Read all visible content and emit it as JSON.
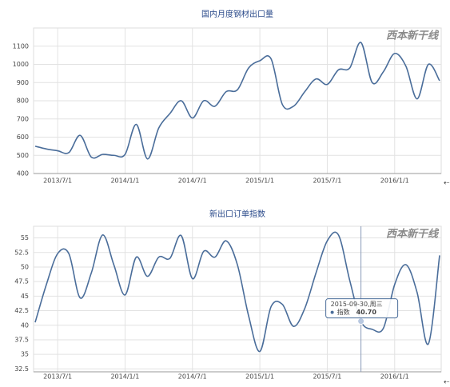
{
  "chart_data": [
    {
      "type": "line",
      "title": "国内月度钢材出口量",
      "watermark": "西本新干线",
      "categories": [
        null,
        null,
        "2013/7/1",
        null,
        null,
        null,
        null,
        null,
        "2014/1/1",
        null,
        null,
        null,
        null,
        null,
        "2014/7/1",
        null,
        null,
        null,
        null,
        null,
        "2015/1/1",
        null,
        null,
        null,
        null,
        null,
        "2015/7/1",
        null,
        null,
        null,
        null,
        null,
        "2016/1/1",
        null,
        null,
        null,
        null
      ],
      "series": [
        {
          "color": "#4a6d9a",
          "values": [
            550,
            535,
            525,
            515,
            610,
            490,
            505,
            500,
            505,
            670,
            480,
            650,
            730,
            800,
            705,
            800,
            770,
            850,
            860,
            980,
            1020,
            1030,
            780,
            770,
            850,
            920,
            890,
            970,
            980,
            1120,
            900,
            960,
            1060,
            990,
            810,
            1000,
            910
          ]
        }
      ],
      "ylim": [
        400,
        1200
      ],
      "yticks": [
        400,
        500,
        600,
        700,
        800,
        900,
        1000,
        1100
      ],
      "grid": true
    },
    {
      "type": "line",
      "title": "新出口订单指数",
      "watermark": "西本新干线",
      "categories": [
        null,
        null,
        "2013/7/1",
        null,
        null,
        null,
        null,
        null,
        "2014/1/1",
        null,
        null,
        null,
        null,
        null,
        "2014/7/1",
        null,
        null,
        null,
        null,
        null,
        "2015/1/1",
        null,
        null,
        null,
        null,
        null,
        "2015/7/1",
        null,
        null,
        null,
        null,
        null,
        "2016/1/1",
        null,
        null,
        null,
        null
      ],
      "series": [
        {
          "name": "指数",
          "color": "#4a6d9a",
          "values": [
            40.5,
            47,
            52.3,
            52.3,
            44.7,
            49,
            55.5,
            50.4,
            45.2,
            51.7,
            48.4,
            51.7,
            51.5,
            55.4,
            48,
            52.7,
            51.7,
            54.5,
            50.4,
            41.6,
            35.5,
            43.2,
            43.6,
            39.8,
            42.9,
            49,
            54.5,
            55.5,
            47.7,
            40.7,
            39.3,
            39.5,
            47,
            50.4,
            45.6,
            36.8,
            52
          ]
        }
      ],
      "tooltip": {
        "title": "2015-09-30,周三",
        "value_label": "40.70"
      },
      "ylim": [
        32,
        57
      ],
      "yticks": [
        32.5,
        35,
        37.5,
        40,
        42.5,
        45,
        47.5,
        50,
        52.5,
        55
      ],
      "grid": true
    }
  ]
}
